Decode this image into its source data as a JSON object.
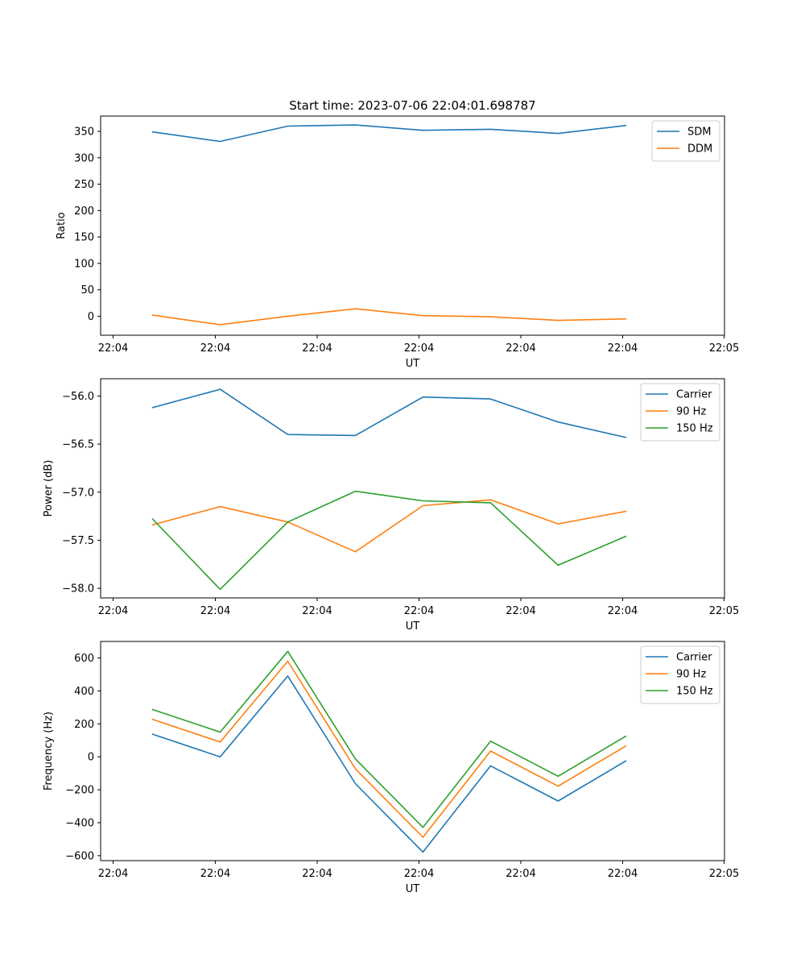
{
  "figure_title": "Start time: 2023-07-06 22:04:01.698787",
  "colors": {
    "blue": "#1f77b4",
    "orange": "#ff7f0e",
    "green": "#2ca02c"
  },
  "chart_data": [
    {
      "type": "line",
      "title": "Start time: 2023-07-06 22:04:01.698787",
      "xlabel": "UT",
      "ylabel": "Ratio",
      "x_ticks": [
        "22:04",
        "22:04",
        "22:04",
        "22:04",
        "22:04",
        "22:04",
        "22:05"
      ],
      "y_ticks": [
        0,
        50,
        100,
        150,
        200,
        250,
        300,
        350
      ],
      "y_tick_labels": [
        "0",
        "50",
        "100",
        "150",
        "200",
        "250",
        "300",
        "350"
      ],
      "xlim": [
        0,
        6
      ],
      "ylim": [
        -36,
        379
      ],
      "x": [
        0.5,
        1.15,
        1.8,
        2.45,
        3.1,
        3.75,
        4.4,
        5.05
      ],
      "legend_position": "top-right",
      "series": [
        {
          "name": "SDM",
          "color": "#1f77b4",
          "values": [
            349,
            331,
            360,
            362,
            352,
            354,
            346,
            361
          ]
        },
        {
          "name": "DDM",
          "color": "#ff7f0e",
          "values": [
            2,
            -16,
            0,
            14,
            1,
            -1,
            -8,
            -5
          ]
        }
      ]
    },
    {
      "type": "line",
      "title": "",
      "xlabel": "UT",
      "ylabel": "Power (dB)",
      "x_ticks": [
        "22:04",
        "22:04",
        "22:04",
        "22:04",
        "22:04",
        "22:04",
        "22:05"
      ],
      "y_ticks": [
        -58.0,
        -57.5,
        -57.0,
        -56.5,
        -56.0
      ],
      "y_tick_labels": [
        "−58.0",
        "−57.5",
        "−57.0",
        "−56.5",
        "−56.0"
      ],
      "xlim": [
        0,
        6
      ],
      "ylim": [
        -58.1,
        -55.82
      ],
      "x": [
        0.5,
        1.15,
        1.8,
        2.45,
        3.1,
        3.75,
        4.4,
        5.05
      ],
      "legend_position": "top-right",
      "series": [
        {
          "name": "Carrier",
          "color": "#1f77b4",
          "values": [
            -56.12,
            -55.93,
            -56.4,
            -56.41,
            -56.01,
            -56.03,
            -56.27,
            -56.43
          ]
        },
        {
          "name": "90 Hz",
          "color": "#ff7f0e",
          "values": [
            -57.34,
            -57.15,
            -57.31,
            -57.62,
            -57.14,
            -57.08,
            -57.33,
            -57.2
          ]
        },
        {
          "name": "150 Hz",
          "color": "#2ca02c",
          "values": [
            -57.28,
            -58.01,
            -57.31,
            -56.99,
            -57.09,
            -57.11,
            -57.76,
            -57.46
          ]
        }
      ]
    },
    {
      "type": "line",
      "title": "",
      "xlabel": "UT",
      "ylabel": "Frequency (Hz)",
      "x_ticks": [
        "22:04",
        "22:04",
        "22:04",
        "22:04",
        "22:04",
        "22:04",
        "22:05"
      ],
      "y_ticks": [
        -600,
        -400,
        -200,
        0,
        200,
        400,
        600
      ],
      "y_tick_labels": [
        "−600",
        "−400",
        "−200",
        "0",
        "200",
        "400",
        "600"
      ],
      "xlim": [
        0,
        6
      ],
      "ylim": [
        -630,
        700
      ],
      "x": [
        0.5,
        1.15,
        1.8,
        2.45,
        3.1,
        3.75,
        4.4,
        5.05
      ],
      "legend_position": "top-right",
      "series": [
        {
          "name": "Carrier",
          "color": "#1f77b4",
          "values": [
            137,
            0,
            490,
            -163,
            -578,
            -55,
            -268,
            -25
          ]
        },
        {
          "name": "90 Hz",
          "color": "#ff7f0e",
          "values": [
            227,
            90,
            580,
            -73,
            -488,
            35,
            -178,
            65
          ]
        },
        {
          "name": "150 Hz",
          "color": "#2ca02c",
          "values": [
            287,
            150,
            640,
            -13,
            -428,
            95,
            -118,
            125
          ]
        }
      ]
    }
  ]
}
